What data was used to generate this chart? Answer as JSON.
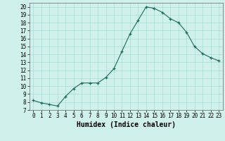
{
  "x": [
    0,
    1,
    2,
    3,
    4,
    5,
    6,
    7,
    8,
    9,
    10,
    11,
    12,
    13,
    14,
    15,
    16,
    17,
    18,
    19,
    20,
    21,
    22,
    23
  ],
  "y": [
    8.2,
    7.9,
    7.7,
    7.5,
    8.7,
    9.7,
    10.4,
    10.4,
    10.4,
    11.1,
    12.2,
    14.4,
    16.6,
    18.3,
    20.0,
    19.8,
    19.3,
    18.5,
    18.0,
    16.8,
    15.0,
    14.1,
    13.6,
    13.2
  ],
  "xlabel": "Humidex (Indice chaleur)",
  "bg_color": "#cff0eb",
  "line_color": "#1a6b5a",
  "grid_color": "#a8ddd7",
  "xlim": [
    -0.5,
    23.5
  ],
  "ylim": [
    7,
    20.5
  ],
  "yticks": [
    7,
    8,
    9,
    10,
    11,
    12,
    13,
    14,
    15,
    16,
    17,
    18,
    19,
    20
  ],
  "xticks": [
    0,
    1,
    2,
    3,
    4,
    5,
    6,
    7,
    8,
    9,
    10,
    11,
    12,
    13,
    14,
    15,
    16,
    17,
    18,
    19,
    20,
    21,
    22,
    23
  ],
  "xlabel_fontsize": 7,
  "tick_fontsize": 5.5
}
